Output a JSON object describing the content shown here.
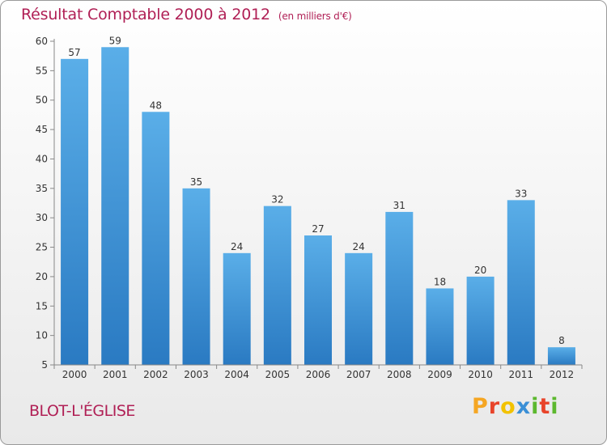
{
  "title": "Résultat Comptable 2000 à 2012",
  "unit": "(en milliers d'€)",
  "commune": "BLOT-L'ÉGLISE",
  "logo": {
    "letters": [
      "P",
      "r",
      "o",
      "x",
      "i",
      "t",
      "i"
    ],
    "colors": [
      "#f5a623",
      "#e8442a",
      "#f2c200",
      "#3a8fd6",
      "#5cb82e",
      "#e8442a",
      "#5cb82e"
    ]
  },
  "colors": {
    "bar_top": "#5aaee8",
    "bar_bottom": "#2a7ac2",
    "text": "#333333",
    "brand": "#b01f55"
  },
  "chart_data": {
    "type": "bar",
    "title": "Résultat Comptable 2000 à 2012",
    "subtitle": "(en milliers d'€)",
    "categories": [
      "2000",
      "2001",
      "2002",
      "2003",
      "2004",
      "2005",
      "2006",
      "2007",
      "2008",
      "2009",
      "2010",
      "2011",
      "2012"
    ],
    "values": [
      57,
      59,
      48,
      35,
      24,
      32,
      27,
      24,
      31,
      18,
      20,
      33,
      8
    ],
    "ylim": [
      5,
      60
    ],
    "yticks": [
      5,
      10,
      15,
      20,
      25,
      30,
      35,
      40,
      45,
      50,
      55,
      60
    ],
    "grid": false,
    "legend": "none",
    "xlabel": "",
    "ylabel": ""
  }
}
